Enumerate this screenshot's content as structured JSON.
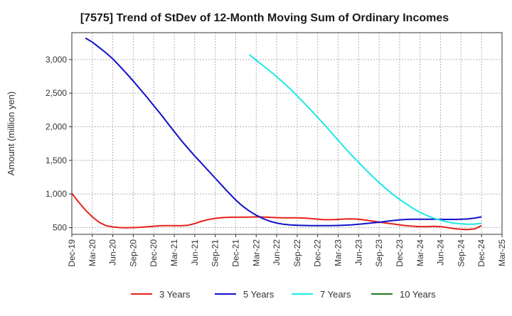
{
  "chart_data": {
    "type": "line",
    "title": "[7575]  Trend of StDev of 12-Month Moving Sum of Ordinary Incomes",
    "ylabel": "Amount (million yen)",
    "xlabel": "",
    "ylim": [
      400,
      3400
    ],
    "yticks": [
      500,
      1000,
      1500,
      2000,
      2500,
      3000
    ],
    "ytick_labels": [
      "500",
      "1,000",
      "1,500",
      "2,000",
      "2,500",
      "3,000"
    ],
    "x_tick_labels": [
      "Dec-19",
      "Mar-20",
      "Jun-20",
      "Sep-20",
      "Dec-20",
      "Mar-21",
      "Jun-21",
      "Sep-21",
      "Dec-21",
      "Mar-22",
      "Jun-22",
      "Sep-22",
      "Dec-22",
      "Mar-23",
      "Jun-23",
      "Sep-23",
      "Dec-23",
      "Mar-24",
      "Jun-24",
      "Sep-24",
      "Dec-24",
      "Mar-25"
    ],
    "grid": true,
    "legend_position": "bottom",
    "series": [
      {
        "name": "3 Years",
        "color": "#e8211a",
        "points": [
          [
            "Dec-19",
            1010
          ],
          [
            "Jan-20",
            880
          ],
          [
            "Feb-20",
            760
          ],
          [
            "Mar-20",
            660
          ],
          [
            "Apr-20",
            580
          ],
          [
            "May-20",
            530
          ],
          [
            "Jun-20",
            510
          ],
          [
            "Jul-20",
            500
          ],
          [
            "Aug-20",
            498
          ],
          [
            "Sep-20",
            500
          ],
          [
            "Oct-20",
            505
          ],
          [
            "Nov-20",
            512
          ],
          [
            "Dec-20",
            520
          ],
          [
            "Jan-21",
            528
          ],
          [
            "Feb-21",
            530
          ],
          [
            "Mar-21",
            530
          ],
          [
            "Apr-21",
            528
          ],
          [
            "May-21",
            535
          ],
          [
            "Jun-21",
            560
          ],
          [
            "Jul-21",
            595
          ],
          [
            "Aug-21",
            620
          ],
          [
            "Sep-21",
            638
          ],
          [
            "Oct-21",
            648
          ],
          [
            "Nov-21",
            653
          ],
          [
            "Dec-21",
            655
          ],
          [
            "Jan-22",
            655
          ],
          [
            "Feb-22",
            657
          ],
          [
            "Mar-22",
            660
          ],
          [
            "Apr-22",
            658
          ],
          [
            "May-22",
            652
          ],
          [
            "Jun-22",
            648
          ],
          [
            "Jul-22",
            645
          ],
          [
            "Aug-22",
            645
          ],
          [
            "Sep-22",
            645
          ],
          [
            "Oct-22",
            642
          ],
          [
            "Nov-22",
            635
          ],
          [
            "Dec-22",
            625
          ],
          [
            "Jan-23",
            618
          ],
          [
            "Feb-23",
            618
          ],
          [
            "Mar-23",
            622
          ],
          [
            "Apr-23",
            628
          ],
          [
            "May-23",
            630
          ],
          [
            "Jun-23",
            625
          ],
          [
            "Jul-23",
            612
          ],
          [
            "Aug-23",
            598
          ],
          [
            "Sep-23",
            582
          ],
          [
            "Oct-23",
            568
          ],
          [
            "Nov-23",
            555
          ],
          [
            "Dec-23",
            540
          ],
          [
            "Jan-24",
            528
          ],
          [
            "Feb-24",
            520
          ],
          [
            "Mar-24",
            515
          ],
          [
            "Apr-24",
            515
          ],
          [
            "May-24",
            518
          ],
          [
            "Jun-24",
            515
          ],
          [
            "Jul-24",
            500
          ],
          [
            "Aug-24",
            485
          ],
          [
            "Sep-24",
            475
          ],
          [
            "Oct-24",
            472
          ],
          [
            "Nov-24",
            480
          ],
          [
            "Dec-24",
            530
          ]
        ]
      },
      {
        "name": "5 Years",
        "color": "#1010c8",
        "points": [
          [
            "Feb-20",
            3320
          ],
          [
            "Mar-20",
            3260
          ],
          [
            "Apr-20",
            3180
          ],
          [
            "May-20",
            3100
          ],
          [
            "Jun-20",
            3010
          ],
          [
            "Jul-20",
            2905
          ],
          [
            "Aug-20",
            2795
          ],
          [
            "Sep-20",
            2680
          ],
          [
            "Oct-20",
            2560
          ],
          [
            "Nov-20",
            2440
          ],
          [
            "Dec-20",
            2315
          ],
          [
            "Jan-21",
            2190
          ],
          [
            "Feb-21",
            2060
          ],
          [
            "Mar-21",
            1930
          ],
          [
            "Apr-21",
            1800
          ],
          [
            "May-21",
            1680
          ],
          [
            "Jun-21",
            1565
          ],
          [
            "Jul-21",
            1455
          ],
          [
            "Aug-21",
            1345
          ],
          [
            "Sep-21",
            1235
          ],
          [
            "Oct-21",
            1125
          ],
          [
            "Nov-21",
            1015
          ],
          [
            "Dec-21",
            910
          ],
          [
            "Jan-22",
            820
          ],
          [
            "Feb-22",
            745
          ],
          [
            "Mar-22",
            685
          ],
          [
            "Apr-22",
            635
          ],
          [
            "May-22",
            595
          ],
          [
            "Jun-22",
            568
          ],
          [
            "Jul-22",
            550
          ],
          [
            "Aug-22",
            540
          ],
          [
            "Sep-22",
            535
          ],
          [
            "Oct-22",
            532
          ],
          [
            "Nov-22",
            530
          ],
          [
            "Dec-22",
            530
          ],
          [
            "Jan-23",
            530
          ],
          [
            "Feb-23",
            530
          ],
          [
            "Mar-23",
            532
          ],
          [
            "Apr-23",
            536
          ],
          [
            "May-23",
            542
          ],
          [
            "Jun-23",
            550
          ],
          [
            "Jul-23",
            560
          ],
          [
            "Aug-23",
            570
          ],
          [
            "Sep-23",
            580
          ],
          [
            "Oct-23",
            592
          ],
          [
            "Nov-23",
            605
          ],
          [
            "Dec-23",
            615
          ],
          [
            "Jan-24",
            622
          ],
          [
            "Feb-24",
            625
          ],
          [
            "Mar-24",
            625
          ],
          [
            "Apr-24",
            625
          ],
          [
            "May-24",
            624
          ],
          [
            "Jun-24",
            623
          ],
          [
            "Jul-24",
            622
          ],
          [
            "Aug-24",
            622
          ],
          [
            "Sep-24",
            624
          ],
          [
            "Oct-24",
            630
          ],
          [
            "Nov-24",
            642
          ],
          [
            "Dec-24",
            660
          ]
        ]
      },
      {
        "name": "7 Years",
        "color": "#1ae8e8",
        "points": [
          [
            "Feb-22",
            3070
          ],
          [
            "Mar-22",
            2990
          ],
          [
            "Apr-22",
            2910
          ],
          [
            "May-22",
            2830
          ],
          [
            "Jun-22",
            2745
          ],
          [
            "Jul-22",
            2655
          ],
          [
            "Aug-22",
            2560
          ],
          [
            "Sep-22",
            2460
          ],
          [
            "Oct-22",
            2355
          ],
          [
            "Nov-22",
            2250
          ],
          [
            "Dec-22",
            2140
          ],
          [
            "Jan-23",
            2030
          ],
          [
            "Feb-23",
            1915
          ],
          [
            "Mar-23",
            1800
          ],
          [
            "Apr-23",
            1685
          ],
          [
            "May-23",
            1575
          ],
          [
            "Jun-23",
            1470
          ],
          [
            "Jul-23",
            1365
          ],
          [
            "Aug-23",
            1265
          ],
          [
            "Sep-23",
            1170
          ],
          [
            "Oct-23",
            1080
          ],
          [
            "Nov-23",
            995
          ],
          [
            "Dec-23",
            920
          ],
          [
            "Jan-24",
            850
          ],
          [
            "Feb-24",
            785
          ],
          [
            "Mar-24",
            725
          ],
          [
            "Apr-24",
            680
          ],
          [
            "May-24",
            640
          ],
          [
            "Jun-24",
            610
          ],
          [
            "Jul-24",
            585
          ],
          [
            "Aug-24",
            565
          ],
          [
            "Sep-24",
            555
          ],
          [
            "Oct-24",
            550
          ],
          [
            "Nov-24",
            552
          ],
          [
            "Dec-24",
            565
          ]
        ]
      },
      {
        "name": "10 Years",
        "color": "#1e7a1e",
        "points": []
      }
    ]
  }
}
